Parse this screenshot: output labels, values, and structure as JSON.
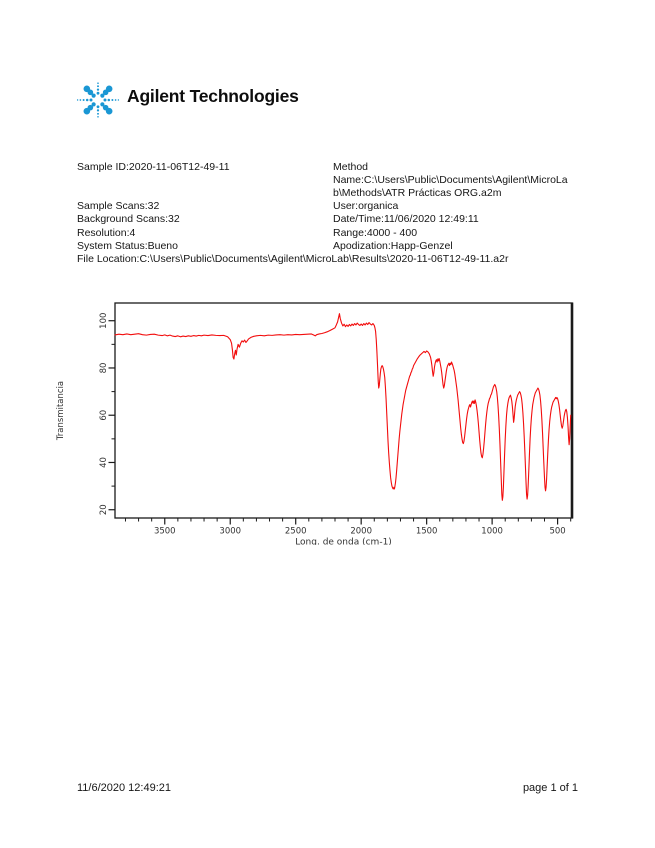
{
  "logo": {
    "text": "Agilent Technologies",
    "spark_color": "#1a97d4",
    "text_color": "#0d0d0d"
  },
  "report": {
    "rows": [
      {
        "left": "Sample ID:2020-11-06T12-49-11",
        "right": "Method"
      },
      {
        "left": "",
        "right": "Name:C:\\Users\\Public\\Documents\\Agilent\\MicroLa"
      },
      {
        "left": "",
        "right": "b\\Methods\\ATR Prácticas ORG.a2m"
      },
      {
        "left": "Sample Scans:32",
        "right": "User:organica"
      },
      {
        "left": "Background Scans:32",
        "right": "Date/Time:11/06/2020 12:49:11"
      },
      {
        "left": "Resolution:4",
        "right": "Range:4000 - 400"
      },
      {
        "left": "System Status:Bueno",
        "right": "Apodization:Happ-Genzel"
      },
      {
        "left": "File Location:C:\\Users\\Public\\Documents\\Agilent\\MicroLab\\Results\\2020-11-06T12-49-11.a2r",
        "right": ""
      }
    ]
  },
  "footer": {
    "datetime": "11/6/2020 12:49:21",
    "page": "page 1 of 1"
  },
  "chart_data": {
    "type": "line",
    "title": "",
    "xlabel": "Long. de onda (cm-1)",
    "ylabel": "Transmitancia",
    "x_reversed": true,
    "xlim": [
      3880,
      390
    ],
    "ylim": [
      16.5,
      107.5
    ],
    "x_ticks_major": [
      3500,
      3000,
      2500,
      2000,
      1500,
      1000,
      500
    ],
    "x_minor_step": 100,
    "y_ticks_major": [
      20,
      40,
      60,
      80,
      100
    ],
    "y_ticks_minor": [
      30,
      50,
      70,
      90
    ],
    "grid": false,
    "legend": "none",
    "line_color": "#f20d0d",
    "axis_color": "#1a1a1a",
    "tick_label_color": "#333333",
    "points": [
      [
        3880,
        94.0
      ],
      [
        3850,
        94.3
      ],
      [
        3820,
        94.1
      ],
      [
        3790,
        94.4
      ],
      [
        3760,
        94.1
      ],
      [
        3730,
        94.3
      ],
      [
        3700,
        94.5
      ],
      [
        3670,
        94.1
      ],
      [
        3640,
        93.9
      ],
      [
        3610,
        94.2
      ],
      [
        3580,
        94.3
      ],
      [
        3550,
        93.9
      ],
      [
        3520,
        93.7
      ],
      [
        3500,
        94.0
      ],
      [
        3480,
        93.6
      ],
      [
        3460,
        93.9
      ],
      [
        3440,
        93.5
      ],
      [
        3420,
        93.3
      ],
      [
        3400,
        93.6
      ],
      [
        3380,
        93.2
      ],
      [
        3360,
        93.5
      ],
      [
        3340,
        93.3
      ],
      [
        3320,
        93.6
      ],
      [
        3300,
        93.4
      ],
      [
        3280,
        93.7
      ],
      [
        3260,
        93.5
      ],
      [
        3240,
        93.8
      ],
      [
        3220,
        93.6
      ],
      [
        3200,
        93.9
      ],
      [
        3170,
        93.7
      ],
      [
        3140,
        94.0
      ],
      [
        3110,
        93.8
      ],
      [
        3080,
        93.7
      ],
      [
        3050,
        93.8
      ],
      [
        3020,
        93.2
      ],
      [
        3000,
        92.0
      ],
      [
        2990,
        90.5
      ],
      [
        2983,
        87.5
      ],
      [
        2978,
        84.5
      ],
      [
        2972,
        83.8
      ],
      [
        2966,
        86.0
      ],
      [
        2960,
        87.5
      ],
      [
        2954,
        85.5
      ],
      [
        2948,
        88.0
      ],
      [
        2940,
        90.0
      ],
      [
        2930,
        88.8
      ],
      [
        2920,
        90.5
      ],
      [
        2910,
        91.5
      ],
      [
        2900,
        91.0
      ],
      [
        2890,
        91.8
      ],
      [
        2880,
        90.8
      ],
      [
        2870,
        91.5
      ],
      [
        2860,
        92.3
      ],
      [
        2840,
        93.0
      ],
      [
        2820,
        93.4
      ],
      [
        2800,
        93.6
      ],
      [
        2770,
        93.8
      ],
      [
        2740,
        93.6
      ],
      [
        2710,
        93.9
      ],
      [
        2680,
        93.8
      ],
      [
        2650,
        94.0
      ],
      [
        2620,
        94.1
      ],
      [
        2590,
        93.9
      ],
      [
        2560,
        94.1
      ],
      [
        2530,
        94.0
      ],
      [
        2500,
        94.2
      ],
      [
        2470,
        94.1
      ],
      [
        2440,
        94.2
      ],
      [
        2410,
        94.3
      ],
      [
        2380,
        94.4
      ],
      [
        2365,
        94.0
      ],
      [
        2350,
        93.6
      ],
      [
        2340,
        94.1
      ],
      [
        2320,
        94.4
      ],
      [
        2300,
        94.6
      ],
      [
        2280,
        94.9
      ],
      [
        2260,
        95.3
      ],
      [
        2240,
        95.8
      ],
      [
        2220,
        96.4
      ],
      [
        2200,
        97.0
      ],
      [
        2190,
        98.2
      ],
      [
        2180,
        99.5
      ],
      [
        2172,
        101.5
      ],
      [
        2166,
        103.0
      ],
      [
        2160,
        101.0
      ],
      [
        2150,
        99.0
      ],
      [
        2140,
        97.8
      ],
      [
        2130,
        98.5
      ],
      [
        2120,
        97.5
      ],
      [
        2110,
        98.2
      ],
      [
        2100,
        97.6
      ],
      [
        2090,
        98.4
      ],
      [
        2080,
        97.8
      ],
      [
        2070,
        98.6
      ],
      [
        2060,
        98.0
      ],
      [
        2050,
        98.8
      ],
      [
        2040,
        98.2
      ],
      [
        2030,
        99.0
      ],
      [
        2020,
        98.4
      ],
      [
        2010,
        98.0
      ],
      [
        2000,
        98.6
      ],
      [
        1990,
        98.0
      ],
      [
        1980,
        98.8
      ],
      [
        1970,
        98.2
      ],
      [
        1960,
        99.0
      ],
      [
        1950,
        98.4
      ],
      [
        1940,
        99.2
      ],
      [
        1930,
        98.6
      ],
      [
        1920,
        98.2
      ],
      [
        1910,
        98.8
      ],
      [
        1900,
        98.0
      ],
      [
        1895,
        97.0
      ],
      [
        1890,
        95.5
      ],
      [
        1885,
        92.0
      ],
      [
        1880,
        87.0
      ],
      [
        1875,
        81.0
      ],
      [
        1870,
        74.5
      ],
      [
        1866,
        71.5
      ],
      [
        1862,
        72.5
      ],
      [
        1858,
        75.0
      ],
      [
        1854,
        77.5
      ],
      [
        1850,
        79.5
      ],
      [
        1845,
        80.5
      ],
      [
        1840,
        81.0
      ],
      [
        1835,
        80.5
      ],
      [
        1830,
        79.5
      ],
      [
        1825,
        78.0
      ],
      [
        1820,
        76.0
      ],
      [
        1815,
        72.0
      ],
      [
        1810,
        67.0
      ],
      [
        1805,
        61.0
      ],
      [
        1800,
        55.0
      ],
      [
        1795,
        49.0
      ],
      [
        1790,
        44.0
      ],
      [
        1785,
        40.0
      ],
      [
        1780,
        36.5
      ],
      [
        1775,
        33.5
      ],
      [
        1770,
        31.5
      ],
      [
        1765,
        30.0
      ],
      [
        1760,
        29.2
      ],
      [
        1755,
        28.8
      ],
      [
        1750,
        29.5
      ],
      [
        1746,
        28.8
      ],
      [
        1742,
        30.0
      ],
      [
        1738,
        31.5
      ],
      [
        1734,
        33.5
      ],
      [
        1730,
        36.0
      ],
      [
        1725,
        39.5
      ],
      [
        1720,
        43.0
      ],
      [
        1715,
        46.5
      ],
      [
        1710,
        50.0
      ],
      [
        1705,
        53.0
      ],
      [
        1700,
        55.5
      ],
      [
        1695,
        58.0
      ],
      [
        1690,
        60.5
      ],
      [
        1685,
        62.5
      ],
      [
        1680,
        64.5
      ],
      [
        1675,
        66.0
      ],
      [
        1670,
        67.5
      ],
      [
        1665,
        69.0
      ],
      [
        1660,
        70.5
      ],
      [
        1655,
        71.5
      ],
      [
        1650,
        72.5
      ],
      [
        1645,
        73.5
      ],
      [
        1640,
        74.5
      ],
      [
        1635,
        75.5
      ],
      [
        1630,
        76.5
      ],
      [
        1625,
        77.0
      ],
      [
        1620,
        78.0
      ],
      [
        1615,
        78.5
      ],
      [
        1610,
        79.5
      ],
      [
        1605,
        80.0
      ],
      [
        1600,
        81.0
      ],
      [
        1590,
        82.0
      ],
      [
        1580,
        83.0
      ],
      [
        1570,
        84.0
      ],
      [
        1560,
        84.8
      ],
      [
        1550,
        85.5
      ],
      [
        1540,
        86.0
      ],
      [
        1530,
        86.5
      ],
      [
        1520,
        87.0
      ],
      [
        1510,
        86.5
      ],
      [
        1500,
        87.2
      ],
      [
        1490,
        86.8
      ],
      [
        1480,
        86.0
      ],
      [
        1470,
        84.5
      ],
      [
        1465,
        83.0
      ],
      [
        1460,
        81.0
      ],
      [
        1455,
        78.5
      ],
      [
        1450,
        76.5
      ],
      [
        1445,
        78.0
      ],
      [
        1440,
        80.5
      ],
      [
        1435,
        82.0
      ],
      [
        1430,
        83.0
      ],
      [
        1425,
        83.5
      ],
      [
        1420,
        82.5
      ],
      [
        1415,
        83.8
      ],
      [
        1410,
        83.0
      ],
      [
        1405,
        84.0
      ],
      [
        1400,
        83.0
      ],
      [
        1395,
        81.5
      ],
      [
        1390,
        80.0
      ],
      [
        1385,
        78.0
      ],
      [
        1380,
        75.5
      ],
      [
        1375,
        73.0
      ],
      [
        1370,
        71.5
      ],
      [
        1365,
        72.5
      ],
      [
        1360,
        74.5
      ],
      [
        1355,
        76.5
      ],
      [
        1350,
        78.5
      ],
      [
        1345,
        80.0
      ],
      [
        1340,
        81.0
      ],
      [
        1335,
        81.5
      ],
      [
        1330,
        82.0
      ],
      [
        1325,
        81.0
      ],
      [
        1320,
        82.0
      ],
      [
        1315,
        81.5
      ],
      [
        1310,
        82.5
      ],
      [
        1305,
        81.8
      ],
      [
        1300,
        81.0
      ],
      [
        1295,
        80.0
      ],
      [
        1290,
        79.0
      ],
      [
        1285,
        77.5
      ],
      [
        1280,
        75.5
      ],
      [
        1275,
        73.5
      ],
      [
        1270,
        71.5
      ],
      [
        1265,
        69.0
      ],
      [
        1260,
        66.5
      ],
      [
        1255,
        63.5
      ],
      [
        1250,
        60.5
      ],
      [
        1245,
        57.5
      ],
      [
        1240,
        54.5
      ],
      [
        1235,
        52.0
      ],
      [
        1230,
        50.0
      ],
      [
        1225,
        48.5
      ],
      [
        1220,
        48.0
      ],
      [
        1215,
        49.0
      ],
      [
        1210,
        51.0
      ],
      [
        1205,
        53.5
      ],
      [
        1200,
        56.0
      ],
      [
        1195,
        58.5
      ],
      [
        1190,
        60.5
      ],
      [
        1185,
        62.0
      ],
      [
        1180,
        63.0
      ],
      [
        1175,
        64.0
      ],
      [
        1170,
        64.5
      ],
      [
        1165,
        63.5
      ],
      [
        1160,
        64.5
      ],
      [
        1155,
        65.5
      ],
      [
        1150,
        66.0
      ],
      [
        1145,
        65.0
      ],
      [
        1140,
        66.0
      ],
      [
        1135,
        65.0
      ],
      [
        1130,
        66.5
      ],
      [
        1125,
        65.5
      ],
      [
        1120,
        64.0
      ],
      [
        1115,
        62.0
      ],
      [
        1110,
        59.5
      ],
      [
        1105,
        56.5
      ],
      [
        1100,
        53.0
      ],
      [
        1095,
        49.5
      ],
      [
        1090,
        46.5
      ],
      [
        1085,
        44.0
      ],
      [
        1080,
        42.5
      ],
      [
        1075,
        42.0
      ],
      [
        1070,
        43.5
      ],
      [
        1065,
        46.0
      ],
      [
        1060,
        49.0
      ],
      [
        1055,
        52.5
      ],
      [
        1050,
        56.0
      ],
      [
        1045,
        59.0
      ],
      [
        1040,
        61.5
      ],
      [
        1035,
        63.5
      ],
      [
        1030,
        65.0
      ],
      [
        1025,
        66.0
      ],
      [
        1020,
        67.0
      ],
      [
        1015,
        67.5
      ],
      [
        1010,
        68.5
      ],
      [
        1005,
        69.0
      ],
      [
        1000,
        70.0
      ],
      [
        995,
        71.0
      ],
      [
        990,
        72.0
      ],
      [
        985,
        72.5
      ],
      [
        980,
        73.0
      ],
      [
        975,
        72.5
      ],
      [
        970,
        71.5
      ],
      [
        965,
        70.0
      ],
      [
        960,
        67.5
      ],
      [
        955,
        64.0
      ],
      [
        950,
        59.5
      ],
      [
        945,
        54.0
      ],
      [
        940,
        47.5
      ],
      [
        935,
        40.0
      ],
      [
        930,
        32.5
      ],
      [
        926,
        26.5
      ],
      [
        922,
        24.0
      ],
      [
        918,
        25.5
      ],
      [
        914,
        29.5
      ],
      [
        910,
        35.5
      ],
      [
        905,
        43.0
      ],
      [
        900,
        50.0
      ],
      [
        895,
        55.5
      ],
      [
        890,
        60.0
      ],
      [
        885,
        63.0
      ],
      [
        880,
        65.0
      ],
      [
        875,
        66.5
      ],
      [
        870,
        67.5
      ],
      [
        865,
        68.0
      ],
      [
        860,
        68.5
      ],
      [
        855,
        67.5
      ],
      [
        850,
        66.0
      ],
      [
        845,
        63.5
      ],
      [
        840,
        60.0
      ],
      [
        836,
        57.0
      ],
      [
        832,
        58.5
      ],
      [
        828,
        61.0
      ],
      [
        824,
        63.5
      ],
      [
        820,
        65.0
      ],
      [
        815,
        66.5
      ],
      [
        810,
        67.5
      ],
      [
        805,
        68.5
      ],
      [
        800,
        69.0
      ],
      [
        795,
        69.5
      ],
      [
        790,
        70.0
      ],
      [
        785,
        69.5
      ],
      [
        780,
        68.5
      ],
      [
        775,
        67.0
      ],
      [
        770,
        64.5
      ],
      [
        765,
        61.0
      ],
      [
        760,
        56.5
      ],
      [
        755,
        51.0
      ],
      [
        750,
        44.5
      ],
      [
        745,
        37.5
      ],
      [
        741,
        31.5
      ],
      [
        737,
        26.5
      ],
      [
        733,
        24.5
      ],
      [
        729,
        26.0
      ],
      [
        725,
        30.0
      ],
      [
        720,
        36.5
      ],
      [
        715,
        43.5
      ],
      [
        710,
        50.0
      ],
      [
        705,
        55.0
      ],
      [
        700,
        59.0
      ],
      [
        695,
        62.0
      ],
      [
        690,
        64.5
      ],
      [
        685,
        66.0
      ],
      [
        680,
        67.5
      ],
      [
        675,
        68.5
      ],
      [
        670,
        69.5
      ],
      [
        665,
        70.0
      ],
      [
        660,
        70.5
      ],
      [
        655,
        71.0
      ],
      [
        650,
        71.5
      ],
      [
        645,
        71.0
      ],
      [
        640,
        70.0
      ],
      [
        635,
        68.5
      ],
      [
        630,
        66.0
      ],
      [
        625,
        62.5
      ],
      [
        620,
        58.0
      ],
      [
        615,
        52.5
      ],
      [
        610,
        46.0
      ],
      [
        605,
        39.5
      ],
      [
        600,
        33.5
      ],
      [
        596,
        29.5
      ],
      [
        592,
        28.0
      ],
      [
        588,
        29.5
      ],
      [
        584,
        33.0
      ],
      [
        580,
        38.0
      ],
      [
        575,
        44.0
      ],
      [
        570,
        49.5
      ],
      [
        565,
        54.0
      ],
      [
        560,
        57.5
      ],
      [
        555,
        60.0
      ],
      [
        550,
        62.0
      ],
      [
        545,
        63.5
      ],
      [
        540,
        64.5
      ],
      [
        535,
        65.5
      ],
      [
        530,
        66.0
      ],
      [
        525,
        66.5
      ],
      [
        520,
        67.0
      ],
      [
        515,
        67.5
      ],
      [
        510,
        67.0
      ],
      [
        505,
        67.5
      ],
      [
        500,
        67.0
      ],
      [
        495,
        66.0
      ],
      [
        490,
        64.5
      ],
      [
        485,
        62.5
      ],
      [
        480,
        60.0
      ],
      [
        475,
        57.5
      ],
      [
        470,
        55.5
      ],
      [
        465,
        54.5
      ],
      [
        460,
        55.5
      ],
      [
        455,
        57.5
      ],
      [
        450,
        59.5
      ],
      [
        445,
        61.0
      ],
      [
        440,
        62.0
      ],
      [
        435,
        62.5
      ],
      [
        430,
        61.5
      ],
      [
        425,
        59.0
      ],
      [
        420,
        55.0
      ],
      [
        416,
        50.5
      ],
      [
        412,
        47.5
      ],
      [
        408,
        50.0
      ],
      [
        404,
        55.0
      ],
      [
        400,
        60.0
      ]
    ]
  }
}
